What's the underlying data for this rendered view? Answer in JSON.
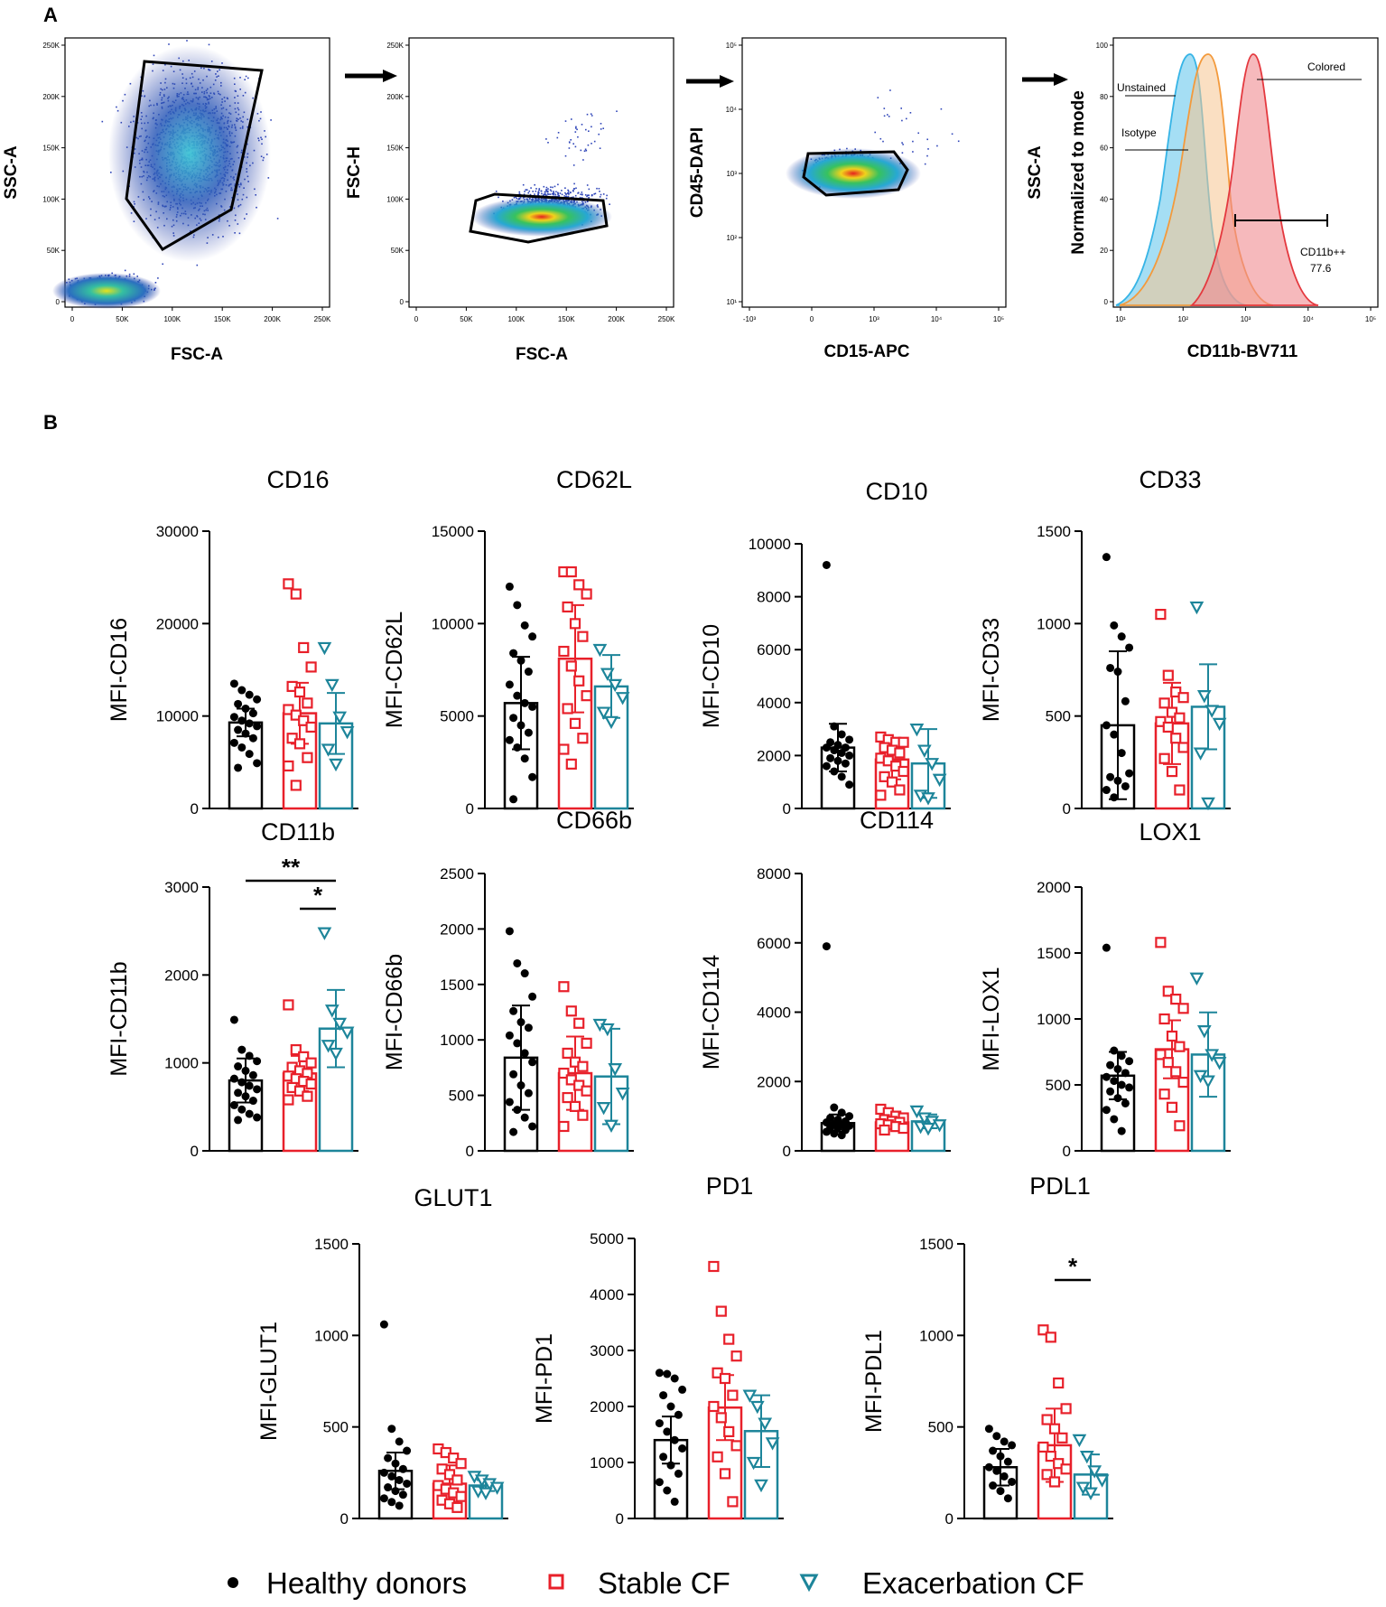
{
  "panel_a_label": "A",
  "panel_b_label": "B",
  "flow_plots": [
    {
      "xlabel": "FSC-A",
      "ylabel": "SSC-A",
      "xticks": [
        "0",
        "50K",
        "100K",
        "150K",
        "200K",
        "250K"
      ],
      "yticks": [
        "0",
        "50K",
        "100K",
        "150K",
        "200K",
        "250K"
      ]
    },
    {
      "xlabel": "FSC-A",
      "ylabel": "FSC-H",
      "xticks": [
        "0",
        "50K",
        "100K",
        "150K",
        "200K",
        "250K"
      ],
      "yticks": [
        "0",
        "50K",
        "100K",
        "150K",
        "200K",
        "250K"
      ]
    },
    {
      "xlabel": "CD15-APC",
      "ylabel": "CD45-DAPI",
      "xticks": [
        "-10³",
        "0",
        "10³",
        "10⁴",
        "10⁵"
      ],
      "yticks": [
        "10¹",
        "10²",
        "10³",
        "10⁴",
        "10⁵"
      ]
    },
    {
      "xlabel": "CD11b-BV711",
      "ylabel": "Normalized to mode",
      "ylabel2": "SSC-A",
      "xticks": [
        "10¹",
        "10²",
        "10³",
        "10⁴",
        "10⁵"
      ],
      "yticks": [
        "0",
        "20",
        "40",
        "60",
        "80",
        "100"
      ],
      "labels": {
        "unstained": "Unstained",
        "isotype": "Isotype",
        "colored": "Colored",
        "gate_name": "CD11b++",
        "gate_value": "77.6"
      }
    }
  ],
  "legend": [
    {
      "label": "Healthy donors",
      "color": "#000000",
      "marker": "circle"
    },
    {
      "label": "Stable CF",
      "color": "#e8202a",
      "marker": "square"
    },
    {
      "label": "Exacerbation CF",
      "color": "#1d859a",
      "marker": "triangle"
    }
  ],
  "chart_data": [
    {
      "type": "bar",
      "title": "CD16",
      "ylabel": "MFI-CD16",
      "ylim": [
        0,
        30000
      ],
      "yticks": [
        0,
        10000,
        20000,
        30000
      ],
      "categories": [
        "Healthy donors",
        "Stable CF",
        "Exacerbation CF"
      ],
      "series": [
        {
          "name": "Healthy donors",
          "mean": 9300,
          "sd": 1500,
          "points": [
            13500,
            12800,
            12300,
            11800,
            11300,
            10800,
            10300,
            9900,
            9500,
            9200,
            8900,
            8500,
            8100,
            7600,
            7100,
            6600,
            5900,
            4900,
            4400
          ]
        },
        {
          "name": "Stable CF",
          "mean": 10300,
          "sd": 3300,
          "points": [
            24300,
            23200,
            17400,
            15300,
            13200,
            12600,
            11400,
            10700,
            10100,
            9500,
            8800,
            7600,
            7000,
            5500,
            4600,
            2500
          ]
        },
        {
          "name": "Exacerbation CF",
          "mean": 9200,
          "sd": 3300,
          "points": [
            17400,
            13400,
            9900,
            8300,
            6400,
            4800
          ]
        }
      ]
    },
    {
      "type": "bar",
      "title": "CD62L",
      "ylabel": "MFI-CD62L",
      "ylim": [
        0,
        15000
      ],
      "yticks": [
        0,
        5000,
        10000,
        15000
      ],
      "categories": [
        "Healthy donors",
        "Stable CF",
        "Exacerbation CF"
      ],
      "series": [
        {
          "name": "Healthy donors",
          "mean": 5700,
          "sd": 2500,
          "points": [
            12000,
            11000,
            9900,
            9300,
            8400,
            8000,
            7400,
            6700,
            6100,
            5700,
            5500,
            4900,
            4500,
            4100,
            3700,
            3300,
            2700,
            1700,
            500
          ]
        },
        {
          "name": "Stable CF",
          "mean": 8100,
          "sd": 2900,
          "points": [
            12800,
            12800,
            12100,
            11600,
            10900,
            10000,
            9300,
            8500,
            7700,
            6900,
            6100,
            5400,
            4600,
            3800,
            3200,
            2400
          ]
        },
        {
          "name": "Exacerbation CF",
          "mean": 6600,
          "sd": 1700,
          "points": [
            8600,
            7300,
            6700,
            6000,
            5200,
            4700
          ]
        }
      ]
    },
    {
      "type": "bar",
      "title": "CD10",
      "ylabel": "MFI-CD10",
      "ylim": [
        0,
        10000
      ],
      "yticks": [
        0,
        2000,
        4000,
        6000,
        8000,
        10000
      ],
      "categories": [
        "Healthy donors",
        "Stable CF",
        "Exacerbation CF"
      ],
      "series": [
        {
          "name": "Healthy donors",
          "mean": 2300,
          "sd": 900,
          "points": [
            9200,
            3100,
            2800,
            2600,
            2500,
            2400,
            2300,
            2300,
            2200,
            2100,
            2000,
            1900,
            1800,
            1700,
            1600,
            1400,
            1200,
            900
          ]
        },
        {
          "name": "Stable CF",
          "mean": 1850,
          "sd": 750,
          "points": [
            2700,
            2600,
            2500,
            2500,
            2300,
            2200,
            2100,
            1900,
            1800,
            1600,
            1400,
            1200,
            1000,
            700,
            500
          ]
        },
        {
          "name": "Exacerbation CF",
          "mean": 1700,
          "sd": 1300,
          "points": [
            3000,
            2200,
            1700,
            1100,
            500,
            400
          ]
        }
      ]
    },
    {
      "type": "bar",
      "title": "CD33",
      "ylabel": "MFI-CD33",
      "ylim": [
        0,
        1500
      ],
      "yticks": [
        0,
        500,
        1000,
        1500
      ],
      "categories": [
        "Healthy donors",
        "Stable CF",
        "Exacerbation CF"
      ],
      "series": [
        {
          "name": "Healthy donors",
          "mean": 450,
          "sd": 400,
          "points": [
            1360,
            990,
            930,
            870,
            760,
            740,
            580,
            450,
            400,
            300,
            190,
            170,
            150,
            120,
            100,
            60
          ]
        },
        {
          "name": "Stable CF",
          "mean": 460,
          "sd": 220,
          "points": [
            1050,
            720,
            630,
            600,
            570,
            520,
            490,
            470,
            440,
            380,
            330,
            270,
            200,
            100
          ]
        },
        {
          "name": "Exacerbation CF",
          "mean": 550,
          "sd": 230,
          "points": [
            1090,
            610,
            530,
            460,
            300,
            30
          ]
        }
      ]
    },
    {
      "type": "bar",
      "title": "CD11b",
      "ylabel": "MFI-CD11b",
      "ylim": [
        0,
        3000
      ],
      "yticks": [
        0,
        1000,
        2000,
        3000
      ],
      "categories": [
        "Healthy donors",
        "Stable CF",
        "Exacerbation CF"
      ],
      "significance": [
        {
          "from": 0,
          "to": 2,
          "label": "**"
        },
        {
          "from": 1,
          "to": 2,
          "label": "*"
        }
      ],
      "series": [
        {
          "name": "Healthy donors",
          "mean": 800,
          "sd": 250,
          "points": [
            1490,
            1150,
            1080,
            1020,
            960,
            910,
            860,
            820,
            780,
            740,
            700,
            660,
            620,
            570,
            520,
            470,
            420,
            380,
            350
          ]
        },
        {
          "name": "Stable CF",
          "mean": 880,
          "sd": 200,
          "points": [
            1660,
            1150,
            1070,
            1000,
            950,
            910,
            880,
            850,
            820,
            790,
            760,
            720,
            680,
            620,
            580
          ]
        },
        {
          "name": "Exacerbation CF",
          "mean": 1390,
          "sd": 440,
          "points": [
            2480,
            1600,
            1450,
            1350,
            1200,
            1110
          ]
        }
      ]
    },
    {
      "type": "bar",
      "title": "CD66b",
      "ylabel": "MFI-CD66b",
      "ylim": [
        0,
        2500
      ],
      "yticks": [
        0,
        500,
        1000,
        1500,
        2000,
        2500
      ],
      "categories": [
        "Healthy donors",
        "Stable CF",
        "Exacerbation CF"
      ],
      "series": [
        {
          "name": "Healthy donors",
          "mean": 840,
          "sd": 470,
          "points": [
            1980,
            1690,
            1600,
            1390,
            1260,
            1160,
            1110,
            1040,
            970,
            880,
            800,
            690,
            590,
            520,
            440,
            370,
            300,
            220,
            170
          ]
        },
        {
          "name": "Stable CF",
          "mean": 700,
          "sd": 330,
          "points": [
            1480,
            1260,
            1150,
            970,
            880,
            800,
            760,
            700,
            640,
            590,
            540,
            480,
            400,
            320,
            220
          ]
        },
        {
          "name": "Exacerbation CF",
          "mean": 670,
          "sd": 430,
          "points": [
            1140,
            1100,
            740,
            520,
            390,
            230
          ]
        }
      ]
    },
    {
      "type": "bar",
      "title": "CD114",
      "ylabel": "MFI-CD114",
      "ylim": [
        0,
        8000
      ],
      "yticks": [
        0,
        2000,
        4000,
        6000,
        8000
      ],
      "categories": [
        "Healthy donors",
        "Stable CF",
        "Exacerbation CF"
      ],
      "series": [
        {
          "name": "Healthy donors",
          "mean": 800,
          "sd": 250,
          "points": [
            5900,
            1250,
            1100,
            1000,
            950,
            900,
            850,
            820,
            780,
            750,
            720,
            680,
            650,
            600,
            550,
            500,
            450
          ]
        },
        {
          "name": "Stable CF",
          "mean": 820,
          "sd": 180,
          "points": [
            1200,
            1100,
            1000,
            950,
            900,
            850,
            820,
            780,
            750,
            700,
            650,
            600
          ]
        },
        {
          "name": "Exacerbation CF",
          "mean": 850,
          "sd": 200,
          "points": [
            1150,
            950,
            850,
            750,
            700,
            650
          ]
        }
      ]
    },
    {
      "type": "bar",
      "title": "LOX1",
      "ylabel": "MFI-LOX1",
      "ylim": [
        0,
        2000
      ],
      "yticks": [
        0,
        500,
        1000,
        1500,
        2000
      ],
      "categories": [
        "Healthy donors",
        "Stable CF",
        "Exacerbation CF"
      ],
      "series": [
        {
          "name": "Healthy donors",
          "mean": 570,
          "sd": 180,
          "points": [
            1540,
            760,
            720,
            680,
            650,
            620,
            590,
            560,
            530,
            500,
            480,
            450,
            400,
            360,
            310,
            240,
            150
          ]
        },
        {
          "name": "Stable CF",
          "mean": 770,
          "sd": 220,
          "points": [
            1580,
            1210,
            1150,
            1080,
            1000,
            870,
            790,
            730,
            670,
            600,
            520,
            430,
            330,
            190
          ]
        },
        {
          "name": "Exacerbation CF",
          "mean": 730,
          "sd": 320,
          "points": [
            1310,
            910,
            730,
            670,
            570,
            530
          ]
        }
      ]
    },
    {
      "type": "bar",
      "title": "GLUT1",
      "ylabel": "MFI-GLUT1",
      "ylim": [
        0,
        1500
      ],
      "yticks": [
        0,
        500,
        1000,
        1500
      ],
      "categories": [
        "Healthy donors",
        "Stable CF",
        "Exacerbation CF"
      ],
      "series": [
        {
          "name": "Healthy donors",
          "mean": 260,
          "sd": 100,
          "points": [
            1060,
            490,
            420,
            370,
            330,
            300,
            270,
            250,
            230,
            210,
            190,
            170,
            150,
            130,
            110,
            90,
            70
          ]
        },
        {
          "name": "Stable CF",
          "mean": 190,
          "sd": 100,
          "points": [
            380,
            360,
            330,
            300,
            270,
            240,
            210,
            180,
            160,
            140,
            120,
            100,
            80,
            60
          ]
        },
        {
          "name": "Exacerbation CF",
          "mean": 180,
          "sd": 30,
          "points": [
            230,
            210,
            190,
            170,
            150,
            140
          ]
        }
      ]
    },
    {
      "type": "bar",
      "title": "PD1",
      "ylabel": "MFI-PD1",
      "ylim": [
        0,
        5000
      ],
      "yticks": [
        0,
        1000,
        2000,
        3000,
        4000,
        5000
      ],
      "categories": [
        "Healthy donors",
        "Stable CF",
        "Exacerbation CF"
      ],
      "series": [
        {
          "name": "Healthy donors",
          "mean": 1400,
          "sd": 420,
          "points": [
            2600,
            2580,
            2500,
            2300,
            2200,
            2000,
            1850,
            1700,
            1550,
            1400,
            1250,
            1100,
            950,
            800,
            650,
            500,
            300
          ]
        },
        {
          "name": "Stable CF",
          "mean": 1980,
          "sd": 580,
          "points": [
            4500,
            3700,
            3200,
            2900,
            2600,
            2500,
            2200,
            2000,
            1800,
            1550,
            1300,
            1100,
            800,
            300
          ]
        },
        {
          "name": "Exacerbation CF",
          "mean": 1560,
          "sd": 640,
          "points": [
            2200,
            2000,
            1700,
            1350,
            1000,
            600
          ]
        }
      ]
    },
    {
      "type": "bar",
      "title": "PDL1",
      "ylabel": "MFI-PDL1",
      "ylim": [
        0,
        1500
      ],
      "yticks": [
        0,
        500,
        1000,
        1500
      ],
      "categories": [
        "Healthy donors",
        "Stable CF",
        "Exacerbation CF"
      ],
      "significance": [
        {
          "from": 1,
          "to": 2,
          "label": "*"
        }
      ],
      "series": [
        {
          "name": "Healthy donors",
          "mean": 280,
          "sd": 100,
          "points": [
            490,
            450,
            420,
            400,
            370,
            340,
            310,
            280,
            260,
            230,
            200,
            180,
            150,
            110
          ]
        },
        {
          "name": "Stable CF",
          "mean": 400,
          "sd": 200,
          "points": [
            1030,
            990,
            740,
            600,
            540,
            490,
            440,
            390,
            340,
            300,
            270,
            240,
            200
          ]
        },
        {
          "name": "Exacerbation CF",
          "mean": 240,
          "sd": 110,
          "points": [
            430,
            340,
            260,
            210,
            170,
            140
          ]
        }
      ]
    }
  ]
}
